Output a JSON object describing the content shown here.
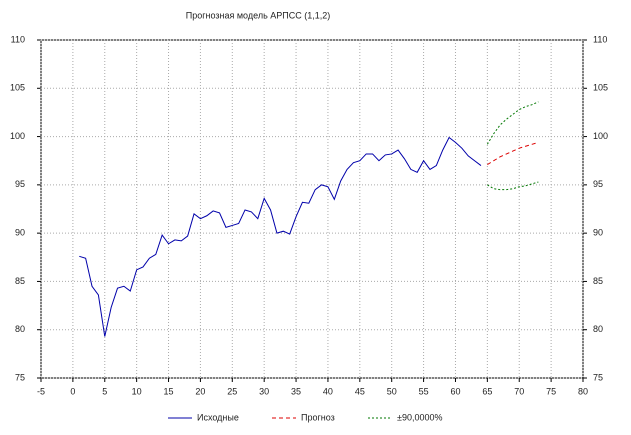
{
  "chart_data": {
    "type": "line",
    "title": "Прогнозная модель АРПСС (1,1,2)",
    "xlim": [
      -5,
      80
    ],
    "xticks": [
      -5,
      0,
      5,
      10,
      15,
      20,
      25,
      30,
      35,
      40,
      45,
      50,
      55,
      60,
      65,
      70,
      75,
      80
    ],
    "ylim": [
      75,
      110
    ],
    "yticks": [
      75,
      80,
      85,
      90,
      95,
      100,
      105,
      110
    ],
    "y2lim": [
      75,
      110
    ],
    "y2ticks": [
      75,
      80,
      85,
      90,
      95,
      100,
      105,
      110
    ],
    "grid": true,
    "legend": "bottom",
    "series": [
      {
        "name": "Исходные",
        "color": "#0000aa",
        "dash": "none",
        "x": [
          1,
          2,
          3,
          4,
          5,
          6,
          7,
          8,
          9,
          10,
          11,
          12,
          13,
          14,
          15,
          16,
          17,
          18,
          19,
          20,
          21,
          22,
          23,
          24,
          25,
          26,
          27,
          28,
          29,
          30,
          31,
          32,
          33,
          34,
          35,
          36,
          37,
          38,
          39,
          40,
          41,
          42,
          43,
          44,
          45,
          46,
          47,
          48,
          49,
          50,
          51,
          52,
          53,
          54,
          55,
          56,
          57,
          58,
          59,
          60,
          61,
          62,
          63,
          64
        ],
        "values": [
          87.6,
          87.4,
          84.5,
          83.6,
          79.3,
          82.3,
          84.3,
          84.5,
          84.0,
          86.2,
          86.5,
          87.4,
          87.8,
          89.8,
          88.9,
          89.3,
          89.2,
          89.7,
          92.0,
          91.5,
          91.8,
          92.3,
          92.1,
          90.6,
          90.8,
          91.0,
          92.4,
          92.2,
          91.5,
          93.6,
          92.4,
          90.0,
          90.2,
          89.9,
          91.7,
          93.2,
          93.1,
          94.5,
          95.0,
          94.8,
          93.5,
          95.4,
          96.6,
          97.3,
          97.5,
          98.2,
          98.2,
          97.5,
          98.1,
          98.2,
          98.6,
          97.7,
          96.6,
          96.3,
          97.5,
          96.6,
          97.0,
          98.6,
          99.9,
          99.4,
          98.8,
          98.0,
          97.5,
          97.0
        ]
      },
      {
        "name": "Прогноз",
        "color": "#dd0000",
        "dash": "4 3",
        "x": [
          65,
          66,
          67,
          68,
          69,
          70,
          71,
          72,
          73
        ],
        "values": [
          97.1,
          97.5,
          97.9,
          98.2,
          98.5,
          98.8,
          99.0,
          99.2,
          99.4
        ]
      },
      {
        "name": "±90,0000%",
        "color": "#007700",
        "dash": "2 2",
        "x": [
          65,
          66,
          67,
          68,
          69,
          70,
          71,
          72,
          73
        ],
        "upper": [
          99.2,
          100.3,
          101.2,
          101.8,
          102.3,
          102.8,
          103.1,
          103.3,
          103.6
        ],
        "lower": [
          95.0,
          94.6,
          94.5,
          94.5,
          94.6,
          94.8,
          94.9,
          95.1,
          95.3
        ]
      }
    ]
  }
}
